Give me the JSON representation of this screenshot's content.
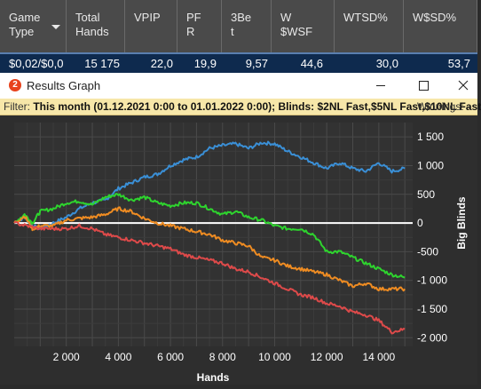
{
  "table": {
    "headers": [
      {
        "l1": "Game",
        "l2": "Type"
      },
      {
        "l1": "Total",
        "l2": "Hands"
      },
      {
        "l1": "VPIP",
        "l2": ""
      },
      {
        "l1": "PF",
        "l2": "R"
      },
      {
        "l1": "3Be",
        "l2": "t"
      },
      {
        "l1": "W",
        "l2": "$WSF"
      },
      {
        "l1": "WTSD%",
        "l2": ""
      },
      {
        "l1": "W$SD%",
        "l2": ""
      }
    ],
    "row": [
      "$0,02/$0,0",
      "15 175",
      "22,0",
      "19,9",
      "9,57",
      "44,6",
      "30,0",
      "53,7"
    ]
  },
  "window": {
    "logo": "2",
    "title": "Results Graph",
    "minimize_icon": "minimize-icon",
    "maximize_icon": "maximize-icon",
    "close_icon": "close-icon"
  },
  "filter": {
    "label": "Filter:",
    "value": "This month (01.12.2021 0:00 to 01.01.2022 0:00); Blinds: $2NL Fast,$5NL Fast,$10NL Fast",
    "winnings_label": "Winnings: -"
  },
  "chart_data": {
    "type": "line",
    "xlabel": "Hands",
    "ylabel": "Big Blinds",
    "xlim": [
      0,
      15300
    ],
    "ylim": [
      -2150,
      1750
    ],
    "x_ticks": [
      2000,
      4000,
      6000,
      8000,
      10000,
      12000,
      14000
    ],
    "x_tick_labels": [
      "2 000",
      "4 000",
      "6 000",
      "8 000",
      "10 000",
      "12 000",
      "14 000"
    ],
    "y_ticks": [
      1500,
      1000,
      500,
      0,
      -500,
      -1000,
      -1500,
      -2000
    ],
    "y_tick_labels": [
      "1 500",
      "1 000",
      "500",
      "0",
      "-500",
      "-1 000",
      "-1 500",
      "-2 000"
    ],
    "grid": true,
    "series": [
      {
        "color": "#3a8fd6",
        "points": [
          [
            0,
            0
          ],
          [
            400,
            100
          ],
          [
            700,
            -50
          ],
          [
            1000,
            -100
          ],
          [
            1500,
            0
          ],
          [
            2000,
            100
          ],
          [
            2500,
            250
          ],
          [
            3000,
            350
          ],
          [
            3500,
            400
          ],
          [
            4000,
            600
          ],
          [
            4500,
            700
          ],
          [
            5000,
            800
          ],
          [
            5500,
            850
          ],
          [
            6000,
            1000
          ],
          [
            6500,
            1100
          ],
          [
            7000,
            1150
          ],
          [
            7500,
            1300
          ],
          [
            8000,
            1350
          ],
          [
            8500,
            1380
          ],
          [
            9000,
            1300
          ],
          [
            9500,
            1400
          ],
          [
            10000,
            1380
          ],
          [
            10500,
            1250
          ],
          [
            11000,
            1150
          ],
          [
            11500,
            1050
          ],
          [
            12000,
            950
          ],
          [
            12500,
            1050
          ],
          [
            13000,
            950
          ],
          [
            13500,
            900
          ],
          [
            14000,
            1050
          ],
          [
            14500,
            900
          ],
          [
            15000,
            950
          ]
        ]
      },
      {
        "color": "#2ed42e",
        "points": [
          [
            0,
            0
          ],
          [
            400,
            150
          ],
          [
            700,
            0
          ],
          [
            1000,
            200
          ],
          [
            1500,
            250
          ],
          [
            2000,
            350
          ],
          [
            2500,
            380
          ],
          [
            3000,
            320
          ],
          [
            3500,
            450
          ],
          [
            4000,
            500
          ],
          [
            4500,
            400
          ],
          [
            5000,
            450
          ],
          [
            5500,
            350
          ],
          [
            6000,
            300
          ],
          [
            6500,
            350
          ],
          [
            7000,
            350
          ],
          [
            7500,
            250
          ],
          [
            8000,
            150
          ],
          [
            8500,
            200
          ],
          [
            9000,
            100
          ],
          [
            9500,
            50
          ],
          [
            10000,
            -50
          ],
          [
            10500,
            -100
          ],
          [
            11000,
            -100
          ],
          [
            11500,
            -200
          ],
          [
            12000,
            -500
          ],
          [
            12500,
            -500
          ],
          [
            13000,
            -600
          ],
          [
            13500,
            -700
          ],
          [
            14000,
            -800
          ],
          [
            14500,
            -900
          ],
          [
            15000,
            -950
          ]
        ]
      },
      {
        "color": "#ef8c22",
        "points": [
          [
            0,
            0
          ],
          [
            400,
            120
          ],
          [
            700,
            -100
          ],
          [
            1000,
            -50
          ],
          [
            1500,
            -50
          ],
          [
            2000,
            50
          ],
          [
            2500,
            80
          ],
          [
            3000,
            100
          ],
          [
            3500,
            150
          ],
          [
            4000,
            250
          ],
          [
            4500,
            200
          ],
          [
            5000,
            80
          ],
          [
            5500,
            0
          ],
          [
            6000,
            -50
          ],
          [
            6500,
            -100
          ],
          [
            7000,
            -150
          ],
          [
            7500,
            -200
          ],
          [
            8000,
            -300
          ],
          [
            8500,
            -350
          ],
          [
            9000,
            -400
          ],
          [
            9500,
            -600
          ],
          [
            10000,
            -650
          ],
          [
            10500,
            -750
          ],
          [
            11000,
            -800
          ],
          [
            11500,
            -850
          ],
          [
            12000,
            -900
          ],
          [
            12500,
            -1000
          ],
          [
            13000,
            -1100
          ],
          [
            13500,
            -1050
          ],
          [
            14000,
            -1150
          ],
          [
            14500,
            -1150
          ],
          [
            15000,
            -1150
          ]
        ]
      },
      {
        "color": "#de4a4a",
        "points": [
          [
            0,
            0
          ],
          [
            500,
            -50
          ],
          [
            1000,
            -100
          ],
          [
            1500,
            -100
          ],
          [
            2000,
            -100
          ],
          [
            2500,
            -50
          ],
          [
            3000,
            -100
          ],
          [
            3500,
            -200
          ],
          [
            4000,
            -250
          ],
          [
            4500,
            -300
          ],
          [
            5000,
            -350
          ],
          [
            5500,
            -400
          ],
          [
            6000,
            -450
          ],
          [
            6500,
            -550
          ],
          [
            7000,
            -600
          ],
          [
            7500,
            -650
          ],
          [
            8000,
            -700
          ],
          [
            8500,
            -800
          ],
          [
            9000,
            -850
          ],
          [
            9500,
            -950
          ],
          [
            10000,
            -1050
          ],
          [
            10500,
            -1150
          ],
          [
            11000,
            -1250
          ],
          [
            11500,
            -1300
          ],
          [
            12000,
            -1400
          ],
          [
            12500,
            -1450
          ],
          [
            13000,
            -1550
          ],
          [
            13500,
            -1600
          ],
          [
            14000,
            -1700
          ],
          [
            14500,
            -1900
          ],
          [
            15000,
            -1850
          ]
        ]
      }
    ]
  }
}
